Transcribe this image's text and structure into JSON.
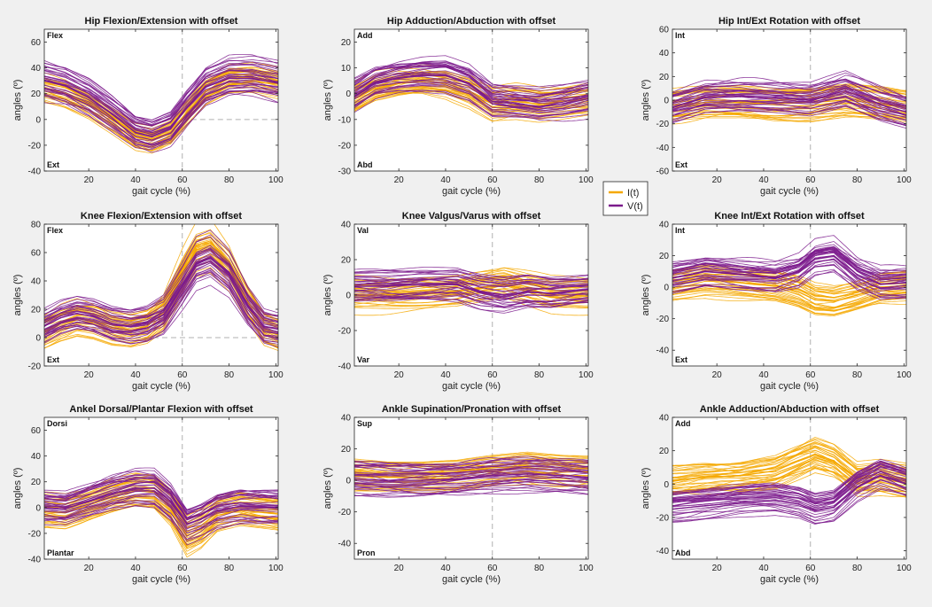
{
  "colors": {
    "I": "#f5a800",
    "V": "#7b1a8c",
    "axes_bg": "#ffffff",
    "fig_bg": "#f0f0f0",
    "ref_line": "#b0b0b0"
  },
  "legend": {
    "placement": "center-right",
    "entries": [
      {
        "series": "I",
        "label": "I(t)"
      },
      {
        "series": "V",
        "label": "V(t)"
      }
    ]
  },
  "chart_data": [
    {
      "type": "line",
      "title": "Hip Flexion/Extension with offset",
      "xlabel": "gait cycle (%)",
      "ylabel": "angles (º)",
      "xlim": [
        1,
        101
      ],
      "ylim": [
        -40,
        70
      ],
      "xticks": [
        20,
        40,
        60,
        80,
        100
      ],
      "yticks": [
        -40,
        -20,
        0,
        20,
        40,
        60
      ],
      "corner_top": "Flex",
      "corner_bottom": "Ext",
      "ref_x": 60,
      "ref_y": 0,
      "ref_y_from": 60,
      "series": [
        {
          "name": "I(t)",
          "color_key": "I",
          "x": [
            1,
            10,
            20,
            30,
            40,
            47,
            55,
            62,
            70,
            80,
            90,
            101
          ],
          "values": [
            24,
            20,
            12,
            0,
            -13,
            -16,
            -10,
            5,
            22,
            32,
            33,
            29
          ]
        },
        {
          "name": "V(t)",
          "color_key": "V",
          "x": [
            1,
            10,
            20,
            30,
            40,
            47,
            55,
            62,
            70,
            80,
            90,
            101
          ],
          "values": [
            30,
            26,
            17,
            4,
            -10,
            -13,
            -7,
            9,
            25,
            32,
            32,
            28
          ]
        }
      ]
    },
    {
      "type": "line",
      "title": "Hip Adduction/Abduction with offset",
      "xlabel": "gait cycle (%)",
      "ylabel": "angles (º)",
      "xlim": [
        1,
        101
      ],
      "ylim": [
        -30,
        25
      ],
      "xticks": [
        20,
        40,
        60,
        80,
        100
      ],
      "yticks": [
        -30,
        -20,
        -10,
        0,
        10,
        20
      ],
      "corner_top": "Add",
      "corner_bottom": "Abd",
      "ref_x": 60,
      "series": [
        {
          "name": "I(t)",
          "color_key": "I",
          "x": [
            1,
            10,
            20,
            30,
            40,
            50,
            60,
            70,
            80,
            90,
            101
          ],
          "values": [
            -2,
            2,
            4,
            5,
            4,
            1,
            -4,
            -3,
            -4,
            -3,
            -2
          ]
        },
        {
          "name": "V(t)",
          "color_key": "V",
          "x": [
            1,
            10,
            20,
            30,
            40,
            50,
            60,
            70,
            80,
            90,
            101
          ],
          "values": [
            -1,
            4,
            6,
            7,
            7,
            4,
            -3,
            -4,
            -5,
            -4,
            -2
          ]
        }
      ]
    },
    {
      "type": "line",
      "title": "Hip Int/Ext Rotation with offset",
      "xlabel": "gait cycle (%)",
      "ylabel": "angles (º)",
      "xlim": [
        1,
        101
      ],
      "ylim": [
        -60,
        60
      ],
      "xticks": [
        20,
        40,
        60,
        80,
        100
      ],
      "yticks": [
        -60,
        -40,
        -20,
        0,
        20,
        40,
        60
      ],
      "corner_top": "Int",
      "corner_bottom": "Ext",
      "ref_x": 60,
      "series": [
        {
          "name": "I(t)",
          "color_key": "I",
          "x": [
            1,
            15,
            30,
            45,
            60,
            75,
            90,
            101
          ],
          "values": [
            -4,
            -2,
            -2,
            -3,
            -2,
            0,
            -3,
            -5
          ]
        },
        {
          "name": "V(t)",
          "color_key": "V",
          "x": [
            1,
            15,
            30,
            45,
            60,
            75,
            90,
            101
          ],
          "values": [
            -6,
            2,
            3,
            2,
            0,
            8,
            -4,
            -10
          ]
        }
      ]
    },
    {
      "type": "line",
      "title": "Knee Flexion/Extension with offset",
      "xlabel": "gait cycle (%)",
      "ylabel": "angles (º)",
      "xlim": [
        1,
        101
      ],
      "ylim": [
        -20,
        80
      ],
      "xticks": [
        20,
        40,
        60,
        80,
        100
      ],
      "yticks": [
        -20,
        0,
        20,
        40,
        60,
        80
      ],
      "corner_top": "Flex",
      "corner_bottom": "Ext",
      "ref_x": 60,
      "ref_y": 0,
      "ref_y_from": 40,
      "ref_y_to": 101,
      "series": [
        {
          "name": "I(t)",
          "color_key": "I",
          "x": [
            1,
            8,
            15,
            22,
            30,
            38,
            45,
            52,
            60,
            66,
            72,
            80,
            88,
            95,
            101
          ],
          "values": [
            4,
            10,
            14,
            12,
            7,
            5,
            8,
            18,
            45,
            62,
            65,
            50,
            25,
            6,
            2
          ]
        },
        {
          "name": "V(t)",
          "color_key": "V",
          "x": [
            1,
            8,
            15,
            22,
            30,
            38,
            45,
            52,
            60,
            66,
            72,
            80,
            88,
            95,
            101
          ],
          "values": [
            8,
            14,
            17,
            15,
            10,
            8,
            10,
            16,
            36,
            52,
            56,
            45,
            22,
            8,
            6
          ]
        }
      ]
    },
    {
      "type": "line",
      "title": "Knee Valgus/Varus with offset",
      "xlabel": "gait cycle (%)",
      "ylabel": "angles (º)",
      "xlim": [
        1,
        101
      ],
      "ylim": [
        -40,
        40
      ],
      "xticks": [
        20,
        40,
        60,
        80,
        100
      ],
      "yticks": [
        -40,
        -20,
        0,
        20,
        40
      ],
      "corner_top": "Val",
      "corner_bottom": "Var",
      "ref_x": 60,
      "series": [
        {
          "name": "I(t)",
          "color_key": "I",
          "x": [
            1,
            15,
            30,
            45,
            55,
            65,
            75,
            85,
            101
          ],
          "values": [
            0,
            0,
            1,
            2,
            4,
            6,
            3,
            0,
            0
          ]
        },
        {
          "name": "V(t)",
          "color_key": "V",
          "x": [
            1,
            15,
            30,
            45,
            55,
            65,
            75,
            85,
            101
          ],
          "values": [
            5,
            5,
            6,
            6,
            2,
            0,
            2,
            1,
            3
          ]
        }
      ]
    },
    {
      "type": "line",
      "title": "Knee Int/Ext Rotation with offset",
      "xlabel": "gait cycle (%)",
      "ylabel": "angles (º)",
      "xlim": [
        1,
        101
      ],
      "ylim": [
        -50,
        40
      ],
      "xticks": [
        20,
        40,
        60,
        80,
        100
      ],
      "yticks": [
        -40,
        -20,
        0,
        20,
        40
      ],
      "corner_top": "Int",
      "corner_bottom": "Ext",
      "ref_x": 60,
      "series": [
        {
          "name": "I(t)",
          "color_key": "I",
          "x": [
            1,
            15,
            30,
            45,
            55,
            62,
            70,
            80,
            90,
            101
          ],
          "values": [
            2,
            5,
            3,
            1,
            -3,
            -8,
            -9,
            -5,
            0,
            1
          ]
        },
        {
          "name": "V(t)",
          "color_key": "V",
          "x": [
            1,
            15,
            30,
            45,
            55,
            62,
            70,
            80,
            90,
            101
          ],
          "values": [
            6,
            10,
            8,
            6,
            10,
            18,
            20,
            8,
            2,
            3
          ]
        }
      ]
    },
    {
      "type": "line",
      "title": "Ankel Dorsal/Plantar Flexion with offset",
      "xlabel": "gait cycle (%)",
      "ylabel": "angles (º)",
      "xlim": [
        1,
        101
      ],
      "ylim": [
        -40,
        70
      ],
      "xticks": [
        20,
        40,
        60,
        80,
        100
      ],
      "yticks": [
        -40,
        -20,
        0,
        20,
        40,
        60
      ],
      "corner_top": "Dorsi",
      "corner_bottom": "Plantar",
      "ref_x": 60,
      "series": [
        {
          "name": "I(t)",
          "color_key": "I",
          "x": [
            1,
            10,
            20,
            30,
            40,
            48,
            55,
            62,
            68,
            75,
            85,
            101
          ],
          "values": [
            -3,
            -4,
            2,
            8,
            13,
            12,
            0,
            -22,
            -17,
            -6,
            -2,
            -5
          ]
        },
        {
          "name": "V(t)",
          "color_key": "V",
          "x": [
            1,
            10,
            20,
            30,
            40,
            48,
            55,
            62,
            68,
            75,
            85,
            101
          ],
          "values": [
            0,
            -1,
            5,
            11,
            15,
            15,
            5,
            -13,
            -9,
            -2,
            1,
            0
          ]
        }
      ]
    },
    {
      "type": "line",
      "title": "Ankle Supination/Pronation with offset",
      "xlabel": "gait cycle (%)",
      "ylabel": "angles (º)",
      "xlim": [
        1,
        101
      ],
      "ylim": [
        -50,
        40
      ],
      "xticks": [
        20,
        40,
        60,
        80,
        100
      ],
      "yticks": [
        -40,
        -20,
        0,
        20,
        40
      ],
      "corner_top": "Sup",
      "corner_bottom": "Pron",
      "ref_x": 60,
      "series": [
        {
          "name": "I(t)",
          "color_key": "I",
          "x": [
            1,
            15,
            30,
            45,
            60,
            75,
            90,
            101
          ],
          "values": [
            3,
            2,
            2,
            3,
            6,
            8,
            6,
            5
          ]
        },
        {
          "name": "V(t)",
          "color_key": "V",
          "x": [
            1,
            15,
            30,
            45,
            60,
            75,
            90,
            101
          ],
          "values": [
            1,
            0,
            0,
            1,
            3,
            4,
            3,
            2
          ]
        }
      ]
    },
    {
      "type": "line",
      "title": "Ankle Adduction/Abduction with offset",
      "xlabel": "gait cycle (%)",
      "ylabel": "angles (º)",
      "xlim": [
        1,
        101
      ],
      "ylim": [
        -45,
        40
      ],
      "xticks": [
        20,
        40,
        60,
        80,
        100
      ],
      "yticks": [
        -40,
        -20,
        0,
        20,
        40
      ],
      "corner_top": "Add",
      "corner_bottom": "Abd",
      "ref_x": 60,
      "series": [
        {
          "name": "I(t)",
          "color_key": "I",
          "x": [
            1,
            15,
            30,
            45,
            55,
            62,
            70,
            80,
            90,
            101
          ],
          "values": [
            2,
            4,
            5,
            8,
            14,
            18,
            14,
            3,
            4,
            2
          ]
        },
        {
          "name": "V(t)",
          "color_key": "V",
          "x": [
            1,
            15,
            30,
            45,
            55,
            62,
            70,
            80,
            90,
            101
          ],
          "values": [
            -15,
            -13,
            -11,
            -10,
            -12,
            -16,
            -14,
            -2,
            5,
            0
          ]
        }
      ]
    }
  ]
}
